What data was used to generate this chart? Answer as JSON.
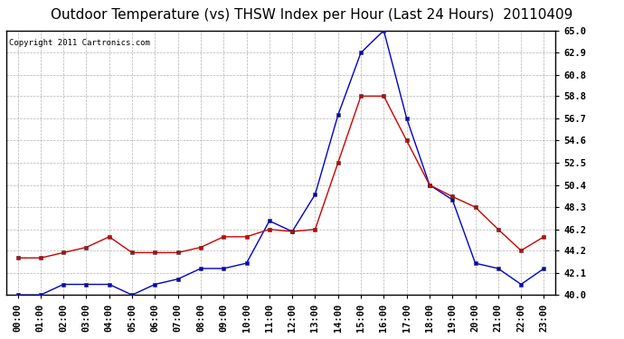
{
  "title": "Outdoor Temperature (vs) THSW Index per Hour (Last 24 Hours)  20110409",
  "copyright": "Copyright 2011 Cartronics.com",
  "hours": [
    "00:00",
    "01:00",
    "02:00",
    "03:00",
    "04:00",
    "05:00",
    "06:00",
    "07:00",
    "08:00",
    "09:00",
    "10:00",
    "11:00",
    "12:00",
    "13:00",
    "14:00",
    "15:00",
    "16:00",
    "17:00",
    "18:00",
    "19:00",
    "20:00",
    "21:00",
    "22:00",
    "23:00"
  ],
  "temp": [
    40.0,
    40.0,
    41.0,
    41.0,
    41.0,
    40.0,
    41.0,
    41.5,
    42.5,
    42.5,
    43.0,
    47.0,
    46.0,
    49.5,
    57.0,
    62.9,
    65.0,
    56.7,
    50.4,
    49.0,
    43.0,
    42.5,
    41.0,
    42.5
  ],
  "thsw": [
    43.5,
    43.5,
    44.0,
    44.5,
    45.5,
    44.0,
    44.0,
    44.0,
    44.5,
    45.5,
    45.5,
    46.2,
    46.0,
    46.2,
    52.5,
    58.8,
    58.8,
    54.6,
    50.4,
    49.3,
    48.3,
    46.2,
    44.2,
    45.5
  ],
  "ylim": [
    40.0,
    65.0
  ],
  "yticks": [
    40.0,
    42.1,
    44.2,
    46.2,
    48.3,
    50.4,
    52.5,
    54.6,
    56.7,
    58.8,
    60.8,
    62.9,
    65.0
  ],
  "temp_color": "#0000cc",
  "thsw_color": "#cc0000",
  "bg_color": "#ffffff",
  "grid_color": "#aaaaaa",
  "title_fontsize": 11,
  "tick_fontsize": 7.5
}
